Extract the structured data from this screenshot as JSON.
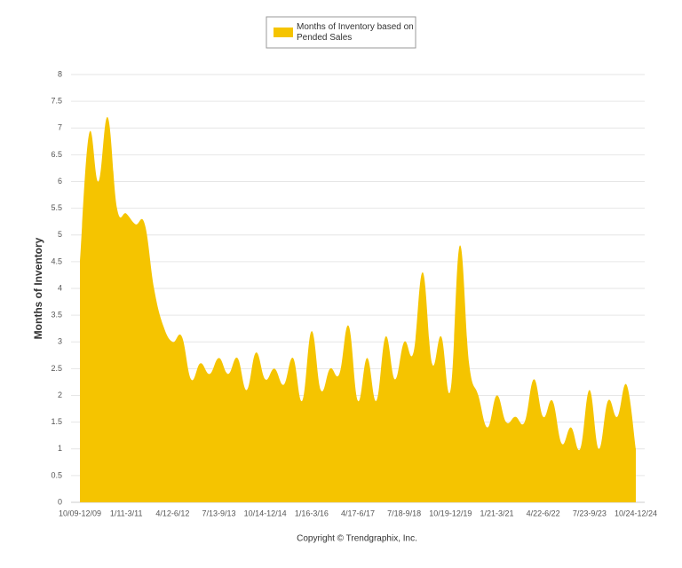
{
  "chart_data": {
    "type": "area",
    "y_label": "Months of Inventory",
    "credit": "Copyright © Trendgraphix, Inc.",
    "legend_position": "top",
    "categories": [
      "10/09-12/09",
      null,
      null,
      null,
      null,
      "1/11-3/11",
      null,
      null,
      null,
      null,
      "4/12-6/12",
      null,
      null,
      null,
      null,
      "7/13-9/13",
      null,
      null,
      null,
      null,
      "10/14-12/14",
      null,
      null,
      null,
      null,
      "1/16-3/16",
      null,
      null,
      null,
      null,
      "4/17-6/17",
      null,
      null,
      null,
      null,
      "7/18-9/18",
      null,
      null,
      null,
      null,
      "10/19-12/19",
      null,
      null,
      null,
      null,
      "1/21-3/21",
      null,
      null,
      null,
      null,
      "4/22-6/22",
      null,
      null,
      null,
      null,
      "7/23-9/23",
      null,
      null,
      null,
      null,
      "10/24-12/24"
    ],
    "series": [
      {
        "name": "Months of Inventory based on Pended Sales",
        "color": "#f5c400",
        "values": [
          4.5,
          6.9,
          6.0,
          7.2,
          5.5,
          5.4,
          5.2,
          5.2,
          4.0,
          3.3,
          3.0,
          3.1,
          2.3,
          2.6,
          2.4,
          2.7,
          2.4,
          2.7,
          2.1,
          2.8,
          2.3,
          2.5,
          2.2,
          2.7,
          1.9,
          3.2,
          2.1,
          2.5,
          2.4,
          3.3,
          1.9,
          2.7,
          1.9,
          3.1,
          2.3,
          3.0,
          2.8,
          4.3,
          2.6,
          3.1,
          2.1,
          4.8,
          2.6,
          2.0,
          1.4,
          2.0,
          1.5,
          1.6,
          1.5,
          2.3,
          1.6,
          1.9,
          1.1,
          1.4,
          1.0,
          2.1,
          1.0,
          1.9,
          1.6,
          2.2,
          1.0
        ]
      }
    ],
    "ylim": [
      0,
      8
    ],
    "yticks": [
      0,
      0.5,
      1,
      1.5,
      2,
      2.5,
      3,
      3.5,
      4,
      4.5,
      5,
      5.5,
      6,
      6.5,
      7,
      7.5,
      8
    ],
    "grid": true
  }
}
